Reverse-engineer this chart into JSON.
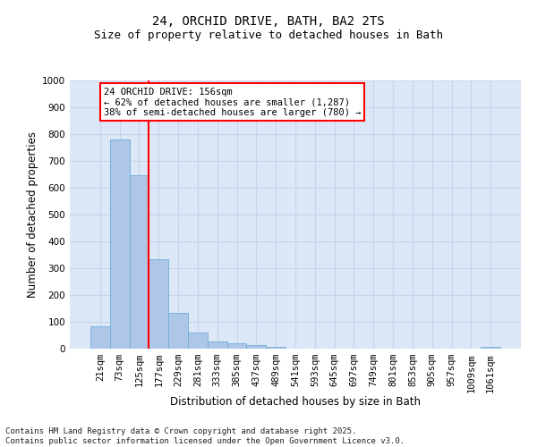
{
  "title_line1": "24, ORCHID DRIVE, BATH, BA2 2TS",
  "title_line2": "Size of property relative to detached houses in Bath",
  "xlabel": "Distribution of detached houses by size in Bath",
  "ylabel": "Number of detached properties",
  "categories": [
    "21sqm",
    "73sqm",
    "125sqm",
    "177sqm",
    "229sqm",
    "281sqm",
    "333sqm",
    "385sqm",
    "437sqm",
    "489sqm",
    "541sqm",
    "593sqm",
    "645sqm",
    "697sqm",
    "749sqm",
    "801sqm",
    "853sqm",
    "905sqm",
    "957sqm",
    "1009sqm",
    "1061sqm"
  ],
  "values": [
    85,
    780,
    648,
    335,
    133,
    60,
    26,
    20,
    14,
    8,
    0,
    0,
    0,
    0,
    0,
    0,
    0,
    0,
    0,
    0,
    8
  ],
  "bar_color": "#aec6e8",
  "bar_edge_color": "#6baed6",
  "vline_x_index": 2.5,
  "vline_color": "red",
  "annotation_text": "24 ORCHID DRIVE: 156sqm\n← 62% of detached houses are smaller (1,287)\n38% of semi-detached houses are larger (780) →",
  "annotation_box_facecolor": "white",
  "annotation_box_edgecolor": "red",
  "ylim": [
    0,
    1000
  ],
  "yticks": [
    0,
    100,
    200,
    300,
    400,
    500,
    600,
    700,
    800,
    900,
    1000
  ],
  "grid_color": "#c8d4e8",
  "background_color": "#dce8f8",
  "footnote": "Contains HM Land Registry data © Crown copyright and database right 2025.\nContains public sector information licensed under the Open Government Licence v3.0.",
  "title_fontsize": 10,
  "subtitle_fontsize": 9,
  "axis_label_fontsize": 8.5,
  "tick_fontsize": 7.5,
  "annotation_fontsize": 7.5,
  "footnote_fontsize": 6.5
}
